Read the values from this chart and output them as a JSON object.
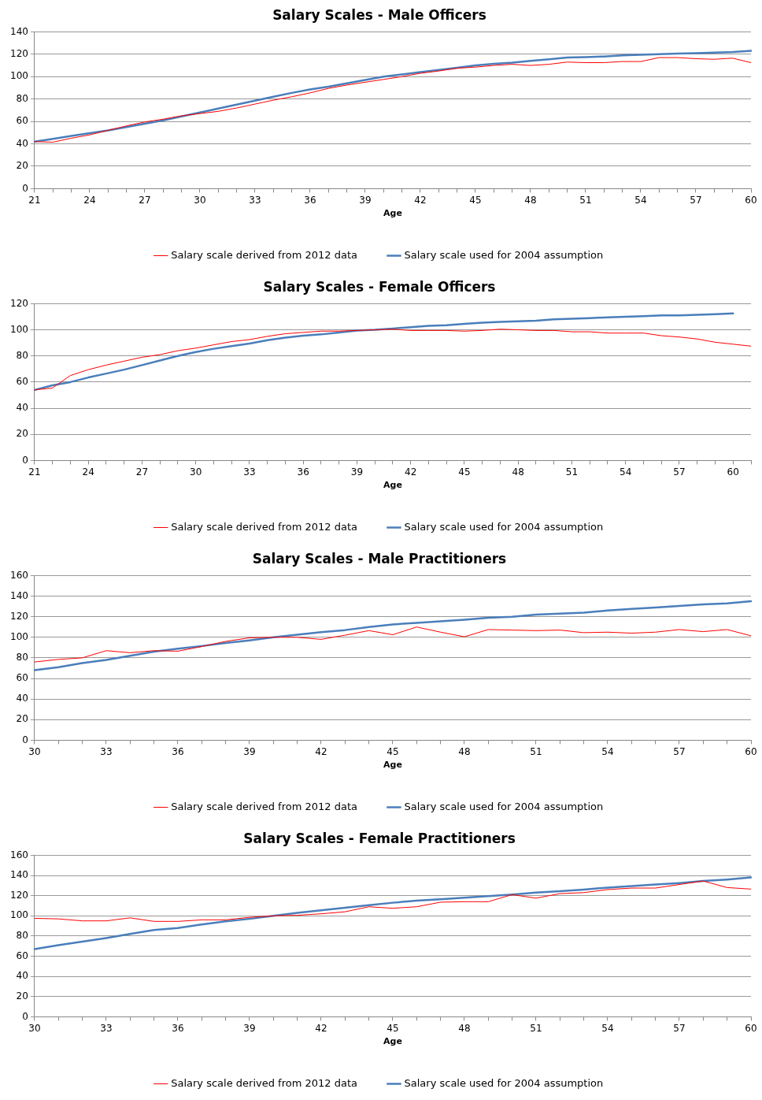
{
  "chart_data": [
    {
      "type": "line",
      "title": "Salary Scales - Male Officers",
      "xlabel": "Age",
      "categories": [
        "21",
        null,
        null,
        "24",
        null,
        null,
        "27",
        null,
        null,
        "30",
        null,
        null,
        "33",
        null,
        null,
        "36",
        null,
        null,
        "39",
        null,
        null,
        "42",
        null,
        null,
        "45",
        null,
        null,
        "48",
        null,
        null,
        "51",
        null,
        null,
        "54",
        null,
        null,
        "57",
        null,
        null,
        "60"
      ],
      "series": [
        {
          "name": "Salary scale derived from 2012 data",
          "color": "#ff0000",
          "values": [
            42,
            41.5,
            45,
            48,
            52,
            56,
            59.5,
            62,
            65,
            67,
            69,
            72,
            75.5,
            79,
            82,
            85.5,
            89.5,
            92.5,
            95,
            97.5,
            100,
            103,
            105,
            107.5,
            108.5,
            110,
            111,
            110,
            111,
            113,
            112.5,
            112.5,
            113.5,
            113.5,
            117,
            117,
            116,
            115.5,
            116.5,
            112.5
          ]
        },
        {
          "name": "Salary scale used for 2004 assumption",
          "color": "#4a7ebb",
          "values": [
            42,
            44.5,
            47,
            49.5,
            52,
            55,
            58,
            61,
            64.5,
            68,
            71.5,
            75,
            78.5,
            82,
            85.5,
            88.5,
            91,
            94,
            97,
            100,
            102,
            104,
            106,
            108,
            110,
            111.5,
            112.5,
            114,
            115.5,
            117,
            117.5,
            118,
            119,
            119.5,
            120,
            120.5,
            121,
            121.5,
            122,
            123
          ]
        }
      ],
      "ylim": [
        0,
        140
      ],
      "yticks": [
        0,
        20,
        40,
        60,
        80,
        100,
        120,
        140
      ],
      "grid": "y",
      "legend": "bottom",
      "marker": "none",
      "line_style": "solid"
    },
    {
      "type": "line",
      "title": "Salary Scales - Female Officers",
      "xlabel": "Age",
      "categories": [
        "21",
        null,
        null,
        "24",
        null,
        null,
        "27",
        null,
        null,
        "30",
        null,
        null,
        "33",
        null,
        null,
        "36",
        null,
        null,
        "39",
        null,
        null,
        "42",
        null,
        null,
        "45",
        null,
        null,
        "48",
        null,
        null,
        "51",
        null,
        null,
        "54",
        null,
        null,
        "57",
        null,
        null,
        "60",
        null
      ],
      "series": [
        {
          "name": "Salary scale derived from 2012 data",
          "color": "#ff0000",
          "values": [
            54,
            55.5,
            65,
            69.5,
            73,
            76,
            79,
            81,
            84,
            86,
            88.5,
            91,
            92.5,
            95,
            97,
            98,
            99,
            99,
            99.5,
            100,
            100.5,
            99.5,
            99.5,
            99.5,
            99,
            99.5,
            100.5,
            100,
            99.5,
            99.5,
            98.5,
            98.5,
            97.5,
            97.5,
            97.5,
            95.5,
            94.5,
            93,
            90.5,
            89,
            87.5
          ]
        },
        {
          "name": "Salary scale used for 2004 assumption",
          "color": "#4a7ebb",
          "values": [
            54,
            57.5,
            60,
            63.5,
            66.5,
            69.5,
            73,
            76.5,
            80,
            83,
            85.5,
            87.5,
            89.5,
            92,
            94,
            95.5,
            96.5,
            98,
            99.5,
            100,
            101,
            102,
            103,
            103.5,
            104.5,
            105.5,
            106,
            106.5,
            107,
            108,
            108.5,
            109,
            109.5,
            110,
            110.5,
            111,
            111,
            111.5,
            112,
            112.5,
            null
          ]
        }
      ],
      "ylim": [
        0,
        120
      ],
      "yticks": [
        0,
        20,
        40,
        60,
        80,
        100,
        120
      ],
      "grid": "y",
      "legend": "bottom",
      "marker": "none",
      "line_style": "solid"
    },
    {
      "type": "line",
      "title": "Salary Scales - Male Practitioners",
      "xlabel": "Age",
      "categories": [
        "30",
        null,
        null,
        "33",
        null,
        null,
        "36",
        null,
        null,
        "39",
        null,
        null,
        "42",
        null,
        null,
        "45",
        null,
        null,
        "48",
        null,
        null,
        "51",
        null,
        null,
        "54",
        null,
        null,
        "57",
        null,
        null,
        "60"
      ],
      "series": [
        {
          "name": "Salary scale derived from 2012 data",
          "color": "#ff0000",
          "values": [
            76,
            78.5,
            80,
            87,
            85,
            87,
            86.5,
            91,
            96,
            99.5,
            100,
            100,
            98,
            102,
            106.5,
            102.5,
            110,
            105,
            100.5,
            107.5,
            107,
            106.5,
            107,
            104.5,
            105,
            104,
            105,
            107.5,
            105.5,
            107.5,
            101.5
          ]
        },
        {
          "name": "Salary scale used for 2004 assumption",
          "color": "#4a7ebb",
          "values": [
            68,
            71,
            75,
            78,
            82,
            86,
            89,
            91.5,
            94.5,
            97,
            100,
            102.5,
            105,
            107,
            110,
            112.5,
            114,
            115.5,
            117,
            119,
            120,
            122,
            123,
            124,
            126,
            127.5,
            129,
            130.5,
            132,
            133,
            135
          ]
        }
      ],
      "ylim": [
        0,
        160
      ],
      "yticks": [
        0,
        20,
        40,
        60,
        80,
        100,
        120,
        140,
        160
      ],
      "grid": "y",
      "legend": "bottom",
      "marker": "none",
      "line_style": "solid"
    },
    {
      "type": "line",
      "title": "Salary Scales - Female Practitioners",
      "xlabel": "Age",
      "categories": [
        "30",
        null,
        null,
        "33",
        null,
        null,
        "36",
        null,
        null,
        "39",
        null,
        null,
        "42",
        null,
        null,
        "45",
        null,
        null,
        "48",
        null,
        null,
        "51",
        null,
        null,
        "54",
        null,
        null,
        "57",
        null,
        null,
        "60"
      ],
      "series": [
        {
          "name": "Salary scale derived from 2012 data",
          "color": "#ff0000",
          "values": [
            97.5,
            97,
            95,
            95,
            98,
            94.5,
            94.5,
            96,
            96,
            98.5,
            100,
            100.5,
            102,
            104,
            109,
            107.5,
            109,
            113.5,
            114,
            114,
            121,
            117.5,
            122,
            123,
            126,
            127.5,
            127.5,
            131,
            134.5,
            128,
            126.5
          ]
        },
        {
          "name": "Salary scale used for 2004 assumption",
          "color": "#4a7ebb",
          "values": [
            67,
            71,
            74.5,
            78,
            82,
            86,
            88,
            91.5,
            94.5,
            97,
            100,
            103,
            105.5,
            108,
            110.5,
            113,
            115,
            116.5,
            118,
            119.5,
            121,
            123,
            124.5,
            126,
            128,
            129.5,
            131,
            132.5,
            134.5,
            136,
            138
          ]
        }
      ],
      "ylim": [
        0,
        160
      ],
      "yticks": [
        0,
        20,
        40,
        60,
        80,
        100,
        120,
        140,
        160
      ],
      "grid": "y",
      "legend": "bottom",
      "marker": "none",
      "line_style": "solid"
    }
  ]
}
